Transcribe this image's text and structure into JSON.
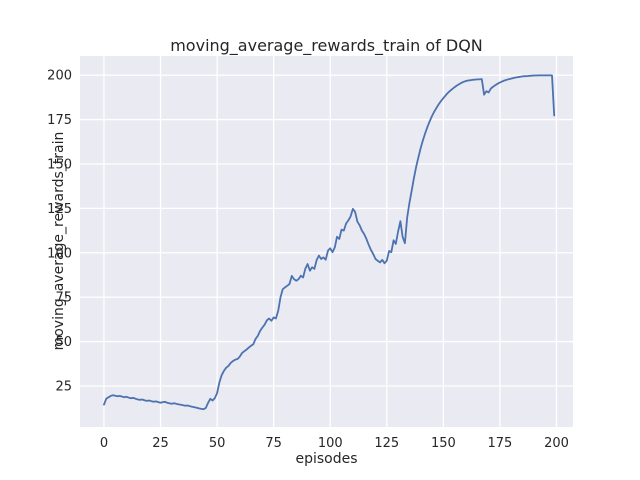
{
  "colors": {
    "figure_bg": "#ffffff",
    "axes_bg": "#eaeaf2",
    "grid": "#ffffff",
    "line": "#4c72b0",
    "text": "#262626"
  },
  "chart_data": {
    "type": "line",
    "title": "moving_average_rewards_train of DQN",
    "xlabel": "episodes",
    "ylabel": "moving_average_rewards_train",
    "grid": true,
    "legend_position": "none",
    "x_ticks": [
      0,
      25,
      50,
      75,
      100,
      125,
      150,
      175,
      200
    ],
    "y_ticks": [
      25,
      50,
      75,
      100,
      125,
      150,
      175,
      200
    ],
    "xlim": [
      -10.6,
      207.3
    ],
    "ylim": [
      1.9,
      210.8
    ],
    "series": [
      {
        "name": "moving_average_rewards_train",
        "color": "#4c72b0",
        "x_start": 0,
        "x_step": 1,
        "values": [
          14.5,
          17.8,
          18.6,
          19.4,
          19.8,
          19.5,
          19.2,
          19.4,
          19.0,
          18.7,
          18.9,
          18.4,
          18.1,
          18.3,
          17.8,
          17.4,
          17.2,
          17.4,
          16.9,
          16.6,
          16.8,
          16.4,
          16.1,
          16.3,
          15.9,
          15.6,
          15.9,
          16.1,
          15.5,
          15.2,
          15.0,
          15.3,
          14.9,
          14.6,
          14.4,
          14.1,
          13.9,
          14.0,
          13.6,
          13.3,
          13.0,
          12.7,
          12.4,
          12.1,
          11.9,
          12.6,
          15.5,
          17.8,
          16.8,
          18.2,
          21.0,
          27.0,
          31.0,
          33.5,
          35.3,
          36.3,
          38.0,
          39.0,
          39.8,
          40.2,
          41.5,
          43.5,
          44.6,
          45.5,
          46.6,
          47.6,
          48.5,
          51.5,
          53.2,
          56.0,
          57.9,
          59.5,
          62.0,
          63.0,
          61.7,
          63.6,
          63.0,
          67.3,
          75.0,
          79.5,
          80.5,
          81.4,
          82.4,
          87.0,
          85.2,
          84.3,
          85.2,
          87.1,
          86.1,
          91.0,
          93.7,
          89.9,
          91.8,
          90.9,
          96.0,
          98.4,
          96.5,
          97.4,
          96.1,
          101.2,
          102.5,
          100.3,
          103.0,
          109.0,
          107.8,
          113.0,
          112.5,
          116.5,
          118.2,
          120.5,
          124.7,
          123.0,
          117.5,
          115.5,
          112.5,
          110.5,
          107.8,
          104.5,
          101.5,
          99.3,
          96.5,
          95.5,
          94.6,
          96.0,
          94.1,
          95.6,
          101.0,
          100.3,
          107.0,
          105.0,
          112.0,
          117.8,
          109.0,
          105.4,
          120.0,
          128.0,
          135.0,
          142.0,
          148.5,
          154.0,
          159.0,
          163.5,
          167.5,
          171.0,
          174.2,
          177.0,
          179.5,
          181.7,
          183.7,
          185.5,
          187.1,
          188.6,
          190.0,
          191.2,
          192.3,
          193.3,
          194.2,
          195.0,
          195.7,
          196.3,
          196.7,
          197.0,
          197.2,
          197.4,
          197.5,
          197.6,
          197.7,
          197.8,
          189.0,
          191.0,
          190.3,
          192.5,
          193.5,
          194.4,
          195.2,
          195.9,
          196.5,
          197.0,
          197.4,
          197.8,
          198.1,
          198.4,
          198.7,
          198.9,
          199.1,
          199.3,
          199.4,
          199.5,
          199.6,
          199.7,
          199.8,
          199.8,
          199.9,
          199.9,
          199.9,
          199.9,
          199.9,
          199.9,
          199.9,
          177.3
        ]
      }
    ]
  }
}
